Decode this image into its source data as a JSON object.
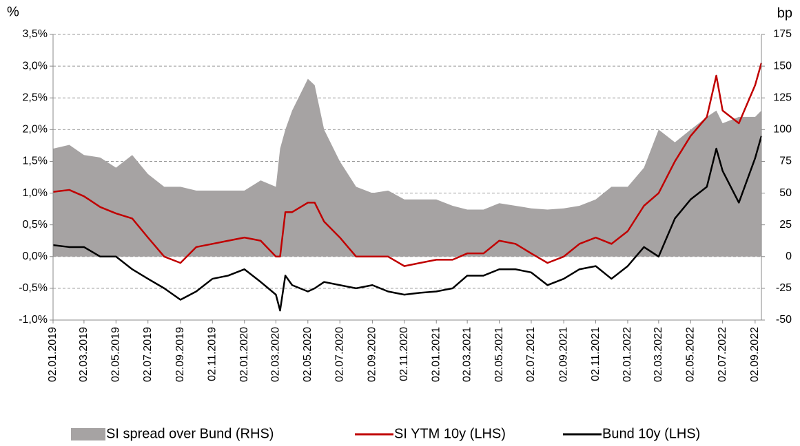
{
  "chart_data": {
    "type": "area_line_dual",
    "y_unit": "%",
    "y2_unit": "bp",
    "x": [
      "02.01.2019",
      "02.02.2019",
      "02.03.2019",
      "02.04.2019",
      "02.05.2019",
      "02.06.2019",
      "02.07.2019",
      "02.08.2019",
      "02.09.2019",
      "02.10.2019",
      "02.11.2019",
      "02.12.2019",
      "02.01.2020",
      "02.02.2020",
      "02.03.2020",
      "10.03.2020",
      "20.03.2020",
      "02.04.2020",
      "02.05.2020",
      "15.05.2020",
      "02.06.2020",
      "02.07.2020",
      "02.08.2020",
      "02.09.2020",
      "02.10.2020",
      "02.11.2020",
      "02.12.2020",
      "02.01.2021",
      "02.02.2021",
      "02.03.2021",
      "02.04.2021",
      "02.05.2021",
      "02.06.2021",
      "02.07.2021",
      "02.08.2021",
      "02.09.2021",
      "02.10.2021",
      "02.11.2021",
      "02.12.2021",
      "02.01.2022",
      "02.02.2022",
      "02.03.2022",
      "02.04.2022",
      "02.05.2022",
      "02.06.2022",
      "20.06.2022",
      "02.07.2022",
      "02.08.2022",
      "02.09.2022",
      "14.09.2022"
    ],
    "series": [
      {
        "name": "SI spread over Bund (RHS)",
        "color": "#a6a3a3",
        "axis": "y2",
        "kind": "area",
        "values": [
          85,
          88,
          80,
          78,
          70,
          80,
          65,
          55,
          55,
          52,
          52,
          52,
          52,
          60,
          55,
          85,
          100,
          115,
          140,
          135,
          100,
          75,
          55,
          50,
          52,
          45,
          45,
          45,
          40,
          37,
          37,
          42,
          40,
          38,
          37,
          38,
          40,
          45,
          55,
          55,
          70,
          100,
          90,
          100,
          110,
          115,
          105,
          110,
          110,
          115
        ]
      },
      {
        "name": "SI YTM 10y (LHS)",
        "color": "#c00000",
        "axis": "y",
        "kind": "line",
        "values": [
          1.02,
          1.05,
          0.95,
          0.78,
          0.68,
          0.6,
          0.3,
          0.0,
          -0.1,
          0.15,
          0.2,
          0.25,
          0.3,
          0.25,
          0.0,
          0.0,
          0.7,
          0.7,
          0.85,
          0.85,
          0.55,
          0.3,
          0.0,
          0.0,
          0.0,
          -0.15,
          -0.1,
          -0.05,
          -0.05,
          0.05,
          0.05,
          0.25,
          0.2,
          0.05,
          -0.1,
          0.0,
          0.2,
          0.3,
          0.2,
          0.4,
          0.8,
          1.0,
          1.5,
          1.9,
          2.2,
          2.85,
          2.3,
          2.1,
          2.7,
          3.05
        ]
      },
      {
        "name": "Bund 10y (LHS)",
        "color": "#000000",
        "axis": "y",
        "kind": "line",
        "values": [
          0.18,
          0.15,
          0.15,
          0.0,
          0.0,
          -0.2,
          -0.35,
          -0.5,
          -0.68,
          -0.55,
          -0.35,
          -0.3,
          -0.2,
          -0.4,
          -0.6,
          -0.85,
          -0.3,
          -0.45,
          -0.55,
          -0.5,
          -0.4,
          -0.45,
          -0.5,
          -0.45,
          -0.55,
          -0.6,
          -0.57,
          -0.55,
          -0.5,
          -0.3,
          -0.3,
          -0.2,
          -0.2,
          -0.25,
          -0.45,
          -0.35,
          -0.2,
          -0.15,
          -0.35,
          -0.15,
          0.15,
          0.0,
          0.6,
          0.9,
          1.1,
          1.7,
          1.35,
          0.85,
          1.55,
          1.9
        ]
      }
    ],
    "xlim": [
      "02.01.2019",
      "14.09.2022"
    ],
    "xticks": [
      "02.01.2019",
      "02.03.2019",
      "02.05.2019",
      "02.07.2019",
      "02.09.2019",
      "02.11.2019",
      "02.01.2020",
      "02.03.2020",
      "02.05.2020",
      "02.07.2020",
      "02.09.2020",
      "02.11.2020",
      "02.01.2021",
      "02.03.2021",
      "02.05.2021",
      "02.07.2021",
      "02.09.2021",
      "02.11.2021",
      "02.01.2022",
      "02.03.2022",
      "02.05.2022",
      "02.07.2022",
      "02.09.2022"
    ],
    "ylim": [
      -1.0,
      3.5
    ],
    "yticks": [
      {
        "value": -1.0,
        "label": "-1,0%"
      },
      {
        "value": -0.5,
        "label": "-0,5%"
      },
      {
        "value": 0,
        "label": "0,0%"
      },
      {
        "value": 0.5,
        "label": "0,5%"
      },
      {
        "value": 1.0,
        "label": "1,0%"
      },
      {
        "value": 1.5,
        "label": "1,5%"
      },
      {
        "value": 2.0,
        "label": "2,0%"
      },
      {
        "value": 2.5,
        "label": "2,5%"
      },
      {
        "value": 3.0,
        "label": "3,0%"
      },
      {
        "value": 3.5,
        "label": "3,5%"
      }
    ],
    "y2lim": [
      -50,
      175
    ],
    "y2ticks": [
      -50,
      -25,
      0,
      25,
      50,
      75,
      100,
      125,
      150,
      175
    ],
    "grid": true
  }
}
